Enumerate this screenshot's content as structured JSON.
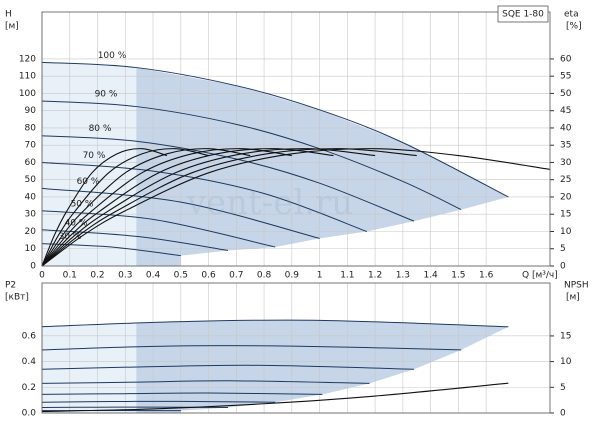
{
  "watermark": "vent-el.ru",
  "chart_data": [
    {
      "type": "line",
      "title": "SQE 1-80",
      "ylabel": "H",
      "ylabel_unit": "[м]",
      "y2label": "eta",
      "y2label_unit": "[%]",
      "xlabel": "Q [м³/ч]",
      "xlim": [
        0,
        1.83
      ],
      "xticks": [
        0,
        0.1,
        0.2,
        0.3,
        0.4,
        0.5,
        0.6,
        0.7,
        0.8,
        0.9,
        1.0,
        1.1,
        1.2,
        1.3,
        1.4,
        1.5,
        1.6
      ],
      "ylim": [
        0,
        147.2
      ],
      "yticks": [
        0,
        10,
        20,
        30,
        40,
        50,
        60,
        70,
        80,
        90,
        100,
        110,
        120
      ],
      "y2lim": [
        0,
        73.6
      ],
      "y2ticks": [
        0,
        5,
        10,
        15,
        20,
        25,
        30,
        35,
        40,
        45,
        50,
        55,
        60
      ],
      "grid": true,
      "series": [
        {
          "name": "100 %",
          "color": "#1f3a5f",
          "x": [
            0,
            0.34,
            0.7,
            1.0,
            1.3,
            1.68
          ],
          "values": [
            118,
            115,
            104.5,
            90.5,
            71.5,
            40
          ]
        },
        {
          "name": "90 %",
          "color": "#1f3a5f",
          "x": [
            0,
            0.34,
            0.7,
            1.0,
            1.3,
            1.51
          ],
          "values": [
            95.6,
            92.4,
            82.1,
            68,
            49,
            32.7
          ]
        },
        {
          "name": "80 %",
          "color": "#1f3a5f",
          "x": [
            0,
            0.34,
            0.7,
            1.0,
            1.34
          ],
          "values": [
            75.5,
            72.3,
            62,
            48,
            26
          ]
        },
        {
          "name": "70 %",
          "color": "#1f3a5f",
          "x": [
            0,
            0.4,
            0.8,
            1.17
          ],
          "values": [
            60,
            55,
            42,
            20
          ]
        },
        {
          "name": "60 %",
          "color": "#1f3a5f",
          "x": [
            0,
            0.5,
            1.0
          ],
          "values": [
            45,
            37,
            16
          ]
        },
        {
          "name": "50 %",
          "color": "#1f3a5f",
          "x": [
            0,
            0.4,
            0.84
          ],
          "values": [
            32,
            27,
            11
          ]
        },
        {
          "name": "40 %",
          "color": "#1f3a5f",
          "x": [
            0,
            0.35,
            0.67
          ],
          "values": [
            21,
            17,
            9
          ]
        },
        {
          "name": "30 %",
          "color": "#1f3a5f",
          "x": [
            0,
            0.25,
            0.5
          ],
          "values": [
            13,
            11,
            6
          ]
        },
        {
          "axis": "y2",
          "color": "#111111",
          "x": [
            0,
            0.15,
            0.3,
            0.6,
            0.9,
            1.2,
            1.5,
            1.83
          ],
          "values": [
            0,
            9,
            16,
            27,
            32.5,
            34,
            32,
            28
          ]
        },
        {
          "axis": "y2",
          "color": "#111111",
          "x": [
            0,
            0.135,
            0.27,
            0.54,
            0.81,
            1.08,
            1.35
          ],
          "values": [
            0,
            9,
            16,
            27,
            32.5,
            34,
            32
          ]
        },
        {
          "axis": "y2",
          "color": "#111111",
          "x": [
            0,
            0.12,
            0.24,
            0.48,
            0.72,
            0.96,
            1.2
          ],
          "values": [
            0,
            9,
            16,
            27,
            32.5,
            34,
            32
          ]
        },
        {
          "axis": "y2",
          "color": "#111111",
          "x": [
            0,
            0.105,
            0.21,
            0.42,
            0.63,
            0.84,
            1.05
          ],
          "values": [
            0,
            9,
            16,
            27,
            32.5,
            34,
            32
          ]
        },
        {
          "axis": "y2",
          "color": "#111111",
          "x": [
            0,
            0.09,
            0.18,
            0.36,
            0.54,
            0.72,
            0.9
          ],
          "values": [
            0,
            9,
            16,
            27,
            32.5,
            34,
            32
          ]
        },
        {
          "axis": "y2",
          "color": "#111111",
          "x": [
            0,
            0.075,
            0.15,
            0.3,
            0.45,
            0.6,
            0.75
          ],
          "values": [
            0,
            9,
            16,
            27,
            32.5,
            34,
            32
          ]
        },
        {
          "axis": "y2",
          "color": "#111111",
          "x": [
            0,
            0.06,
            0.12,
            0.24,
            0.36,
            0.48,
            0.6
          ],
          "values": [
            0,
            9,
            16,
            27,
            32.5,
            34,
            32
          ]
        },
        {
          "axis": "y2",
          "color": "#111111",
          "x": [
            0,
            0.045,
            0.09,
            0.18,
            0.27,
            0.36,
            0.45
          ],
          "values": [
            0,
            9,
            16,
            27,
            32.5,
            34,
            32
          ]
        }
      ]
    },
    {
      "type": "line",
      "ylabel": "P2",
      "ylabel_unit": "[кВт]",
      "y2label": "NPSH",
      "y2label_unit": "[м]",
      "xlim": [
        0,
        1.83
      ],
      "xticks": [
        0,
        0.1,
        0.2,
        0.3,
        0.4,
        0.5,
        0.6,
        0.7,
        0.8,
        0.9,
        1.0,
        1.1,
        1.2,
        1.3,
        1.4,
        1.5,
        1.6
      ],
      "ylim": [
        0,
        1.01
      ],
      "yticks": [
        {
          "value": 0,
          "label": "0.0"
        },
        0.2,
        0.4,
        0.6
      ],
      "y2lim": [
        0,
        25.3
      ],
      "y2ticks": [
        0,
        5,
        10,
        15
      ],
      "grid": true,
      "series": [
        {
          "color": "#1f3a5f",
          "x": [
            0,
            0.5,
            1.0,
            1.68
          ],
          "values": [
            0.67,
            0.71,
            0.72,
            0.67
          ]
        },
        {
          "color": "#1f3a5f",
          "x": [
            0,
            0.45,
            0.9,
            1.51
          ],
          "values": [
            0.49,
            0.52,
            0.52,
            0.49
          ]
        },
        {
          "color": "#1f3a5f",
          "x": [
            0,
            0.4,
            0.8,
            1.34
          ],
          "values": [
            0.34,
            0.36,
            0.37,
            0.34
          ]
        },
        {
          "color": "#1f3a5f",
          "x": [
            0,
            0.35,
            0.7,
            1.18
          ],
          "values": [
            0.23,
            0.24,
            0.25,
            0.23
          ]
        },
        {
          "color": "#1f3a5f",
          "x": [
            0,
            0.3,
            0.6,
            1.01
          ],
          "values": [
            0.145,
            0.15,
            0.155,
            0.145
          ]
        },
        {
          "color": "#1f3a5f",
          "x": [
            0,
            0.25,
            0.5,
            0.84
          ],
          "values": [
            0.084,
            0.089,
            0.09,
            0.084
          ]
        },
        {
          "color": "#1f3a5f",
          "x": [
            0,
            0.2,
            0.4,
            0.67
          ],
          "values": [
            0.043,
            0.045,
            0.046,
            0.043
          ]
        },
        {
          "color": "#1f3a5f",
          "x": [
            0,
            0.15,
            0.3,
            0.5
          ],
          "values": [
            0.018,
            0.019,
            0.019,
            0.018
          ]
        },
        {
          "axis": "y2",
          "color": "#111111",
          "x": [
            0,
            0.4,
            0.8,
            1.2,
            1.68
          ],
          "values": [
            0.3,
            0.8,
            1.8,
            3.3,
            5.8
          ]
        }
      ]
    }
  ]
}
